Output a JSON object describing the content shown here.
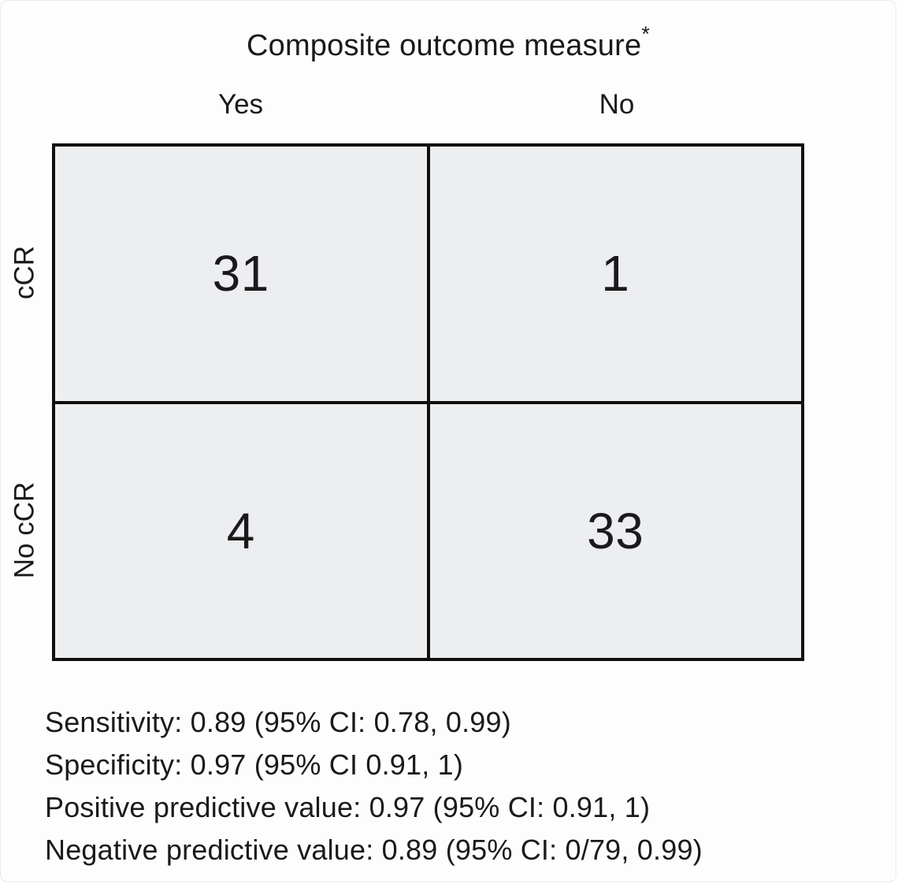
{
  "figure": {
    "title": "Composite outcome measure",
    "title_superscript": "*"
  },
  "matrix": {
    "column_headers": [
      "Yes",
      "No"
    ],
    "row_headers": [
      "cCR",
      "No cCR"
    ],
    "cells": [
      [
        "31",
        "1"
      ],
      [
        "4",
        "33"
      ]
    ]
  },
  "stats": {
    "lines": [
      "Sensitivity: 0.89 (95% CI: 0.78, 0.99)",
      "Specificity: 0.97 (95% CI 0.91, 1)",
      "Positive predictive value: 0.97 (95% CI: 0.91, 1)",
      "Negative predictive value: 0.89 (95% CI: 0/79, 0.99)"
    ]
  },
  "colors": {
    "cell_fill": "#edeef0",
    "grid_border": "#0f0f10",
    "background": "#fdfdfe",
    "text": "#1a1a1c"
  },
  "chart_data": {
    "type": "table",
    "title": "Composite outcome measure*",
    "columns": [
      "Yes",
      "No"
    ],
    "rows": [
      "cCR",
      "No cCR"
    ],
    "values": [
      [
        31,
        1
      ],
      [
        4,
        33
      ]
    ],
    "legend_position": "none",
    "grid": true,
    "annotations": [
      "Sensitivity: 0.89 (95% CI: 0.78, 0.99)",
      "Specificity: 0.97 (95% CI 0.91, 1)",
      "Positive predictive value: 0.97 (95% CI: 0.91, 1)",
      "Negative predictive value: 0.89 (95% CI: 0/79, 0.99)"
    ]
  }
}
